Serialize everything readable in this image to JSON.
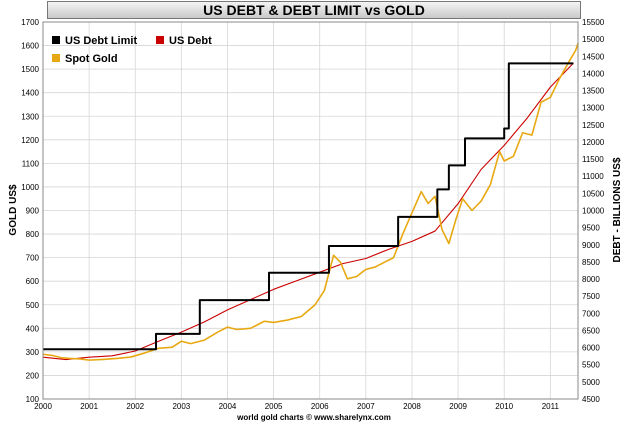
{
  "chart_data": {
    "type": "line",
    "title": "US DEBT & DEBT LIMIT vs GOLD",
    "ylabel_left": "GOLD US$",
    "ylabel_right": "DEBT - BILLIONS US$",
    "footer": "world gold charts © www.sharelynx.com",
    "x_ticks": [
      "2000",
      "2001",
      "2002",
      "2003",
      "2004",
      "2005",
      "2006",
      "2007",
      "2008",
      "2009",
      "2010",
      "2011"
    ],
    "xlim": [
      2000,
      2011.6
    ],
    "ylim_left": [
      100,
      1700
    ],
    "ylim_right": [
      4500,
      15500
    ],
    "y_ticks_left": [
      100,
      200,
      300,
      400,
      500,
      600,
      700,
      800,
      900,
      1000,
      1100,
      1200,
      1300,
      1400,
      1500,
      1600,
      1700
    ],
    "y_ticks_right": [
      4500,
      5000,
      5500,
      6000,
      6500,
      7000,
      7500,
      8000,
      8500,
      9000,
      9500,
      10000,
      10500,
      11000,
      11500,
      12000,
      12500,
      13000,
      13500,
      14000,
      14500,
      15000,
      15500
    ],
    "grid": true,
    "legend_position": "top-left",
    "series": [
      {
        "name": "US Debt Limit",
        "color": "#000000",
        "axis": "right",
        "step": true,
        "x": [
          2000.0,
          2002.45,
          2003.4,
          2004.9,
          2006.2,
          2007.7,
          2008.55,
          2008.8,
          2009.15,
          2010.0,
          2010.1,
          2011.5
        ],
        "y": [
          5950,
          6400,
          7384,
          8184,
          8965,
          9815,
          10615,
          11315,
          12104,
          12394,
          14294,
          14294
        ]
      },
      {
        "name": "US Debt",
        "color": "#cc0000",
        "axis": "right",
        "step": false,
        "x": [
          2000.0,
          2000.5,
          2001.0,
          2001.5,
          2002.0,
          2002.5,
          2003.0,
          2003.5,
          2004.0,
          2004.5,
          2005.0,
          2005.5,
          2006.0,
          2006.5,
          2007.0,
          2007.5,
          2008.0,
          2008.5,
          2009.0,
          2009.5,
          2010.0,
          2010.5,
          2011.0,
          2011.5
        ],
        "y": [
          5720,
          5650,
          5720,
          5760,
          5900,
          6180,
          6450,
          6750,
          7100,
          7400,
          7700,
          7950,
          8200,
          8450,
          8600,
          8870,
          9100,
          9400,
          10200,
          11200,
          11900,
          12700,
          13600,
          14300
        ]
      },
      {
        "name": "Spot Gold",
        "color": "#e8a811",
        "axis": "left",
        "step": false,
        "x": [
          2000.0,
          2000.2,
          2000.4,
          2000.6,
          2000.8,
          2001.0,
          2001.3,
          2001.6,
          2001.9,
          2002.2,
          2002.5,
          2002.8,
          2003.0,
          2003.2,
          2003.5,
          2003.8,
          2004.0,
          2004.2,
          2004.5,
          2004.8,
          2005.0,
          2005.3,
          2005.6,
          2005.9,
          2006.1,
          2006.3,
          2006.45,
          2006.6,
          2006.8,
          2007.0,
          2007.2,
          2007.4,
          2007.6,
          2007.8,
          2008.0,
          2008.2,
          2008.35,
          2008.5,
          2008.65,
          2008.8,
          2008.95,
          2009.1,
          2009.3,
          2009.5,
          2009.7,
          2009.9,
          2010.0,
          2010.2,
          2010.4,
          2010.6,
          2010.8,
          2011.0,
          2011.2,
          2011.4,
          2011.55,
          2011.6
        ],
        "y": [
          290,
          285,
          275,
          272,
          270,
          265,
          268,
          272,
          278,
          295,
          315,
          320,
          345,
          335,
          350,
          385,
          405,
          395,
          400,
          430,
          425,
          435,
          450,
          500,
          560,
          710,
          680,
          610,
          620,
          650,
          660,
          680,
          700,
          800,
          890,
          980,
          930,
          960,
          820,
          760,
          860,
          950,
          900,
          940,
          1010,
          1150,
          1110,
          1130,
          1230,
          1220,
          1360,
          1380,
          1460,
          1530,
          1580,
          1610
        ]
      }
    ]
  }
}
